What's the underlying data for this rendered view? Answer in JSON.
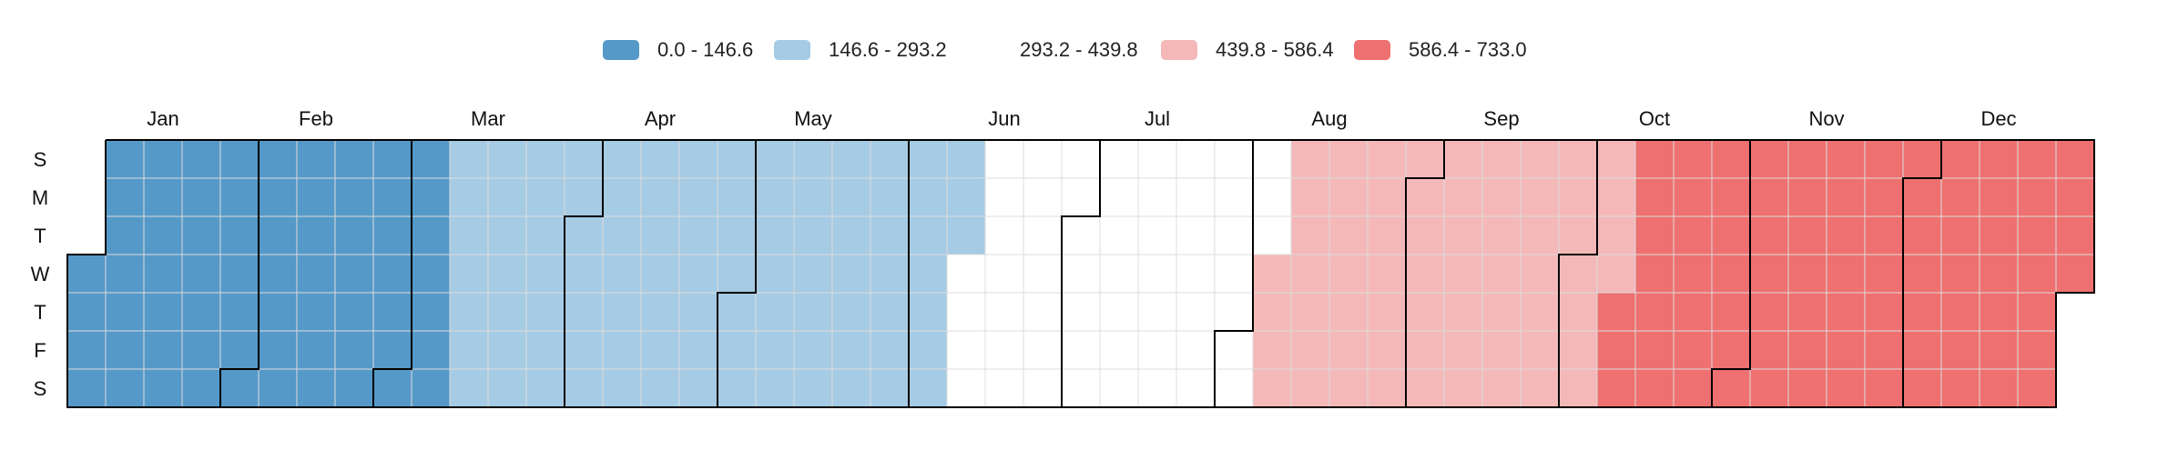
{
  "chart_data": {
    "type": "heatmap",
    "title": "",
    "legend": {
      "placement": "top-center",
      "entries": [
        {
          "label": "0.0 - 146.6",
          "color": "#5599c8"
        },
        {
          "label": "146.6 - 293.2",
          "color": "#a6cbe4"
        },
        {
          "label": "293.2 - 439.8",
          "color": "#ffffff"
        },
        {
          "label": "439.8 - 586.4",
          "color": "#f4b8b8"
        },
        {
          "label": "586.4 - 733.0",
          "color": "#ef7070"
        }
      ]
    },
    "months": [
      "Jan",
      "Feb",
      "Mar",
      "Apr",
      "May",
      "Jun",
      "Jul",
      "Aug",
      "Sep",
      "Oct",
      "Nov",
      "Dec"
    ],
    "weekday_labels": [
      "S",
      "M",
      "T",
      "W",
      "T",
      "F",
      "S"
    ],
    "first_weekday_index": 3,
    "days_in_year": 365,
    "value_range": [
      0.0,
      733.0
    ],
    "bin_start_day": [
      1,
      68,
      162,
      218,
      282
    ],
    "grid": true
  }
}
